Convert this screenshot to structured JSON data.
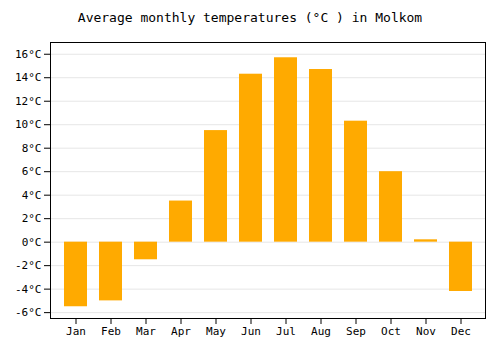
{
  "chart_data": {
    "type": "bar",
    "title": "Average monthly temperatures (°C ) in Molkom",
    "categories": [
      "Jan",
      "Feb",
      "Mar",
      "Apr",
      "May",
      "Jun",
      "Jul",
      "Aug",
      "Sep",
      "Oct",
      "Nov",
      "Dec"
    ],
    "values": [
      -5.5,
      -5.0,
      -1.5,
      3.5,
      9.5,
      14.3,
      15.7,
      14.7,
      10.3,
      6.0,
      0.2,
      -4.2
    ],
    "color": "#FFAA00",
    "ylim": [
      -6.5,
      17.0
    ],
    "yticks": [
      {
        "value": -6,
        "label": "-6°C"
      },
      {
        "value": -4,
        "label": "-4°C"
      },
      {
        "value": -2,
        "label": "-2°C"
      },
      {
        "value": 0,
        "label": "0°C"
      },
      {
        "value": 2,
        "label": "2°C"
      },
      {
        "value": 4,
        "label": "4°C"
      },
      {
        "value": 6,
        "label": "6°C"
      },
      {
        "value": 8,
        "label": "8°C"
      },
      {
        "value": 10,
        "label": "10°C"
      },
      {
        "value": 12,
        "label": "12°C"
      },
      {
        "value": 14,
        "label": "14°C"
      },
      {
        "value": 16,
        "label": "16°C"
      }
    ],
    "grid": true
  }
}
